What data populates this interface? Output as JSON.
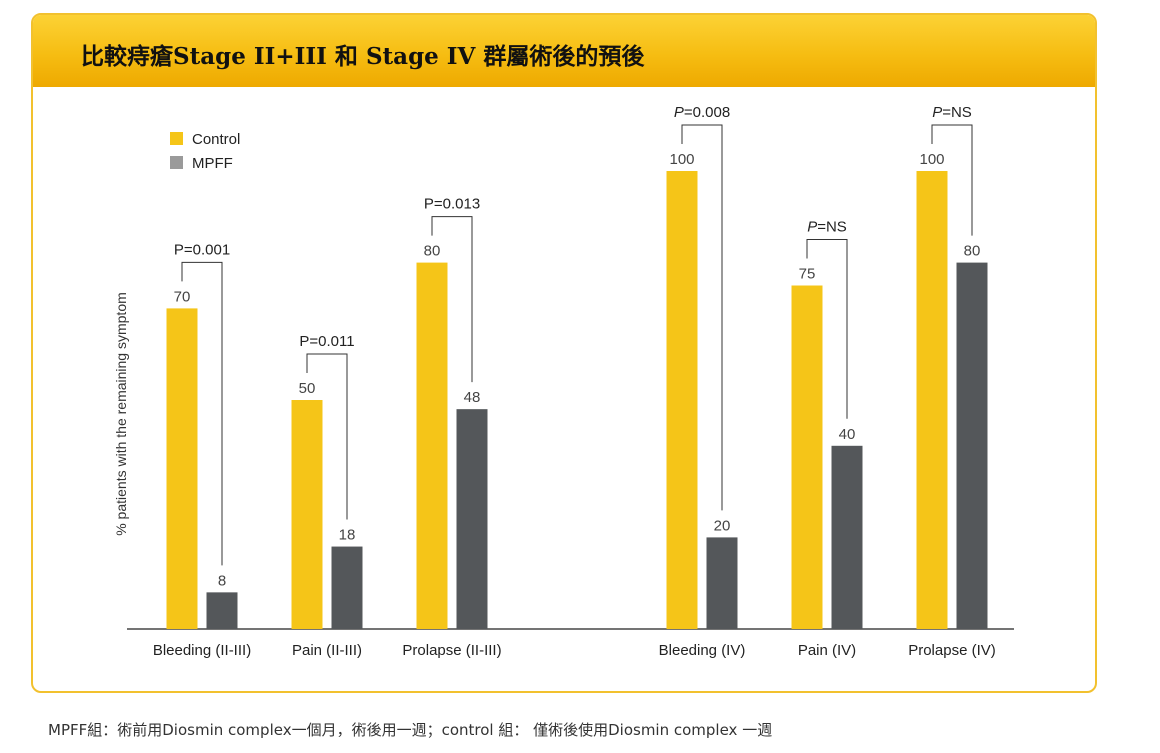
{
  "title": "比較痔瘡Stage II+III 和 Stage IV 群屬術後的預後",
  "footnote": "MPFF組：術前用Diosmin complex一個月，術後用一週；control 組：  僅術後使用Diosmin complex 一週",
  "colors": {
    "control": "#f5c518",
    "mpff": "#54575a",
    "header": "#f6bd12",
    "border": "#f2c12e"
  },
  "chart_data": {
    "type": "bar",
    "ylabel": "% patients with the remaining symptom",
    "ylim": [
      0,
      100
    ],
    "grid": false,
    "legend_position": "top-left",
    "categories": [
      "Bleeding (II-III)",
      "Pain (II-III)",
      "Prolapse (II-III)",
      "Bleeding (IV)",
      "Pain (IV)",
      "Prolapse (IV)"
    ],
    "series": [
      {
        "name": "Control",
        "values": [
          70,
          50,
          80,
          100,
          75,
          100
        ]
      },
      {
        "name": "MPFF",
        "values": [
          8,
          18,
          48,
          20,
          40,
          80
        ]
      }
    ],
    "p_values": [
      {
        "prefix": "P",
        "value": "=0.001"
      },
      {
        "prefix": "P",
        "value": "=0.011"
      },
      {
        "prefix": "P",
        "value": "=0.013"
      },
      {
        "prefix": "P",
        "value": "=0.008"
      },
      {
        "prefix": "P",
        "value": "=NS"
      },
      {
        "prefix": "P",
        "value": "=NS"
      }
    ]
  }
}
